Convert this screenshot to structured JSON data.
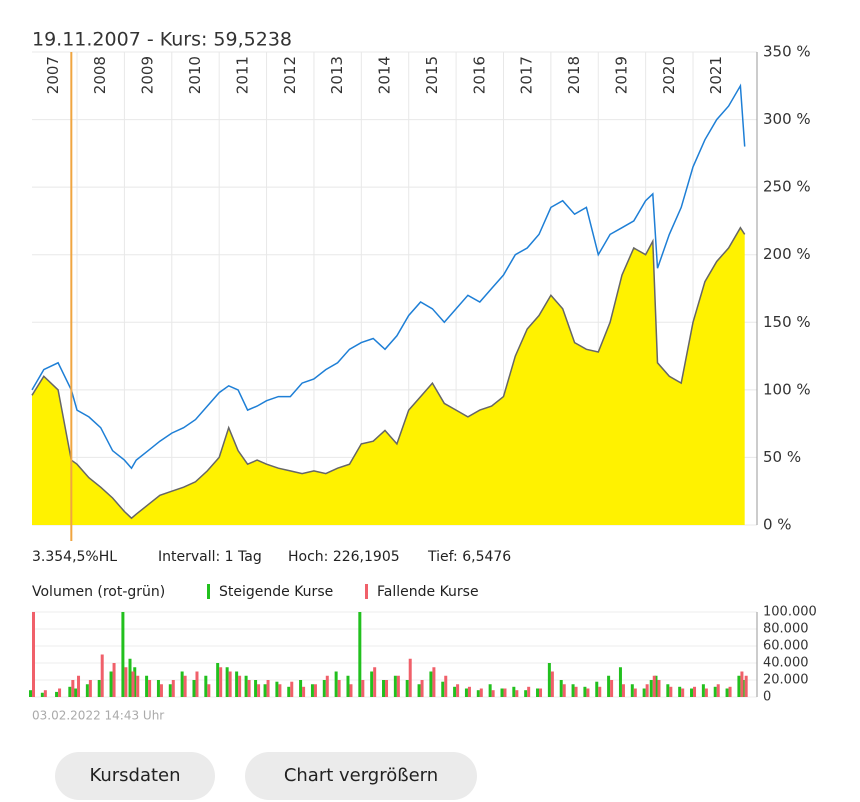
{
  "chart_data": [
    {
      "type": "line",
      "marker": {
        "x": 2007.88,
        "label": "19.11.2007  -  Kurs: 59,5238"
      },
      "annotations": [
        "3.354,5%HL",
        "Intervall: 1 Tag",
        "Hoch: 226,1905",
        "Tief: 6,5476"
      ],
      "x": [
        2007.05,
        2007.3,
        2007.6,
        2007.88,
        2008.0,
        2008.25,
        2008.5,
        2008.75,
        2009.0,
        2009.15,
        2009.25,
        2009.5,
        2009.75,
        2010.0,
        2010.25,
        2010.5,
        2010.75,
        2011.0,
        2011.2,
        2011.4,
        2011.6,
        2011.8,
        2012.0,
        2012.25,
        2012.5,
        2012.75,
        2013.0,
        2013.25,
        2013.5,
        2013.75,
        2014.0,
        2014.25,
        2014.5,
        2014.75,
        2015.0,
        2015.25,
        2015.5,
        2015.75,
        2016.0,
        2016.25,
        2016.5,
        2016.75,
        2017.0,
        2017.25,
        2017.5,
        2017.75,
        2018.0,
        2018.25,
        2018.5,
        2018.75,
        2019.0,
        2019.25,
        2019.5,
        2019.75,
        2020.0,
        2020.15,
        2020.25,
        2020.5,
        2020.75,
        2021.0,
        2021.25,
        2021.5,
        2021.75,
        2022.0,
        2022.09
      ],
      "series": [
        {
          "kind": "area",
          "color": "#fff200",
          "line_color": "#666666",
          "values": [
            96,
            110,
            100,
            48,
            45,
            35,
            28,
            20,
            10,
            5,
            8,
            15,
            22,
            25,
            28,
            32,
            40,
            50,
            72,
            55,
            45,
            48,
            45,
            42,
            40,
            38,
            40,
            38,
            42,
            45,
            60,
            62,
            70,
            60,
            85,
            95,
            105,
            90,
            85,
            80,
            85,
            88,
            95,
            125,
            145,
            155,
            170,
            160,
            135,
            130,
            128,
            150,
            185,
            205,
            200,
            210,
            120,
            110,
            105,
            150,
            180,
            195,
            205,
            220,
            215
          ]
        },
        {
          "kind": "line",
          "color": "#1e7fd6",
          "values": [
            100,
            115,
            120,
            100,
            85,
            80,
            72,
            55,
            48,
            42,
            48,
            55,
            62,
            68,
            72,
            78,
            88,
            98,
            103,
            100,
            85,
            88,
            92,
            95,
            95,
            105,
            108,
            115,
            120,
            130,
            135,
            138,
            130,
            140,
            155,
            165,
            160,
            150,
            160,
            170,
            165,
            175,
            185,
            200,
            205,
            215,
            235,
            240,
            230,
            235,
            200,
            215,
            220,
            225,
            240,
            245,
            190,
            215,
            235,
            265,
            285,
            300,
            310,
            325,
            280
          ]
        }
      ],
      "xlim": [
        2007.05,
        2022.35
      ],
      "xticks": [
        2007,
        2008,
        2009,
        2010,
        2011,
        2012,
        2013,
        2014,
        2015,
        2016,
        2017,
        2018,
        2019,
        2020,
        2021
      ],
      "ylim": [
        0,
        350
      ],
      "yticks": [
        {
          "value": 0,
          "label": "0 %"
        },
        {
          "value": 50,
          "label": "50 %"
        },
        {
          "value": 100,
          "label": "100 %"
        },
        {
          "value": 150,
          "label": "150 %"
        },
        {
          "value": 200,
          "label": "200 %"
        },
        {
          "value": 250,
          "label": "250 %"
        },
        {
          "value": 300,
          "label": "300 %"
        },
        {
          "value": 350,
          "label": "350 %"
        }
      ],
      "grid": true
    },
    {
      "type": "bar",
      "title": "Volumen (rot-grün)",
      "footnote": "03.02.2022 14:43 Uhr",
      "x": [
        2007.05,
        2007.3,
        2007.6,
        2007.88,
        2008.0,
        2008.25,
        2008.5,
        2008.75,
        2009.0,
        2009.15,
        2009.25,
        2009.5,
        2009.75,
        2010.0,
        2010.25,
        2010.5,
        2010.75,
        2011.0,
        2011.2,
        2011.4,
        2011.6,
        2011.8,
        2012.0,
        2012.25,
        2012.5,
        2012.75,
        2013.0,
        2013.25,
        2013.5,
        2013.75,
        2014.0,
        2014.25,
        2014.5,
        2014.75,
        2015.0,
        2015.25,
        2015.5,
        2015.75,
        2016.0,
        2016.25,
        2016.5,
        2016.75,
        2017.0,
        2017.25,
        2017.5,
        2017.75,
        2018.0,
        2018.25,
        2018.5,
        2018.75,
        2019.0,
        2019.25,
        2019.5,
        2019.75,
        2020.0,
        2020.15,
        2020.25,
        2020.5,
        2020.75,
        2021.0,
        2021.25,
        2021.5,
        2021.75,
        2022.0,
        2022.09
      ],
      "series": [
        {
          "name": "Steigende Kurse",
          "color": "#22c01e",
          "values": [
            8000,
            5000,
            6000,
            12000,
            10000,
            15000,
            20000,
            30000,
            100000,
            45000,
            35000,
            25000,
            20000,
            15000,
            30000,
            20000,
            25000,
            40000,
            35000,
            30000,
            25000,
            20000,
            15000,
            18000,
            12000,
            20000,
            15000,
            20000,
            30000,
            25000,
            100000,
            30000,
            20000,
            25000,
            20000,
            15000,
            30000,
            18000,
            12000,
            10000,
            8000,
            15000,
            10000,
            12000,
            8000,
            10000,
            40000,
            20000,
            15000,
            12000,
            18000,
            25000,
            35000,
            15000,
            10000,
            20000,
            25000,
            15000,
            12000,
            10000,
            15000,
            12000,
            10000,
            25000,
            20000
          ]
        },
        {
          "name": "Fallende Kurse",
          "color": "#f0606a",
          "values": [
            100000,
            8000,
            10000,
            20000,
            25000,
            20000,
            50000,
            40000,
            35000,
            30000,
            25000,
            20000,
            15000,
            20000,
            25000,
            30000,
            15000,
            35000,
            30000,
            25000,
            20000,
            15000,
            20000,
            15000,
            18000,
            12000,
            15000,
            25000,
            20000,
            15000,
            20000,
            35000,
            20000,
            25000,
            45000,
            20000,
            35000,
            25000,
            15000,
            12000,
            10000,
            8000,
            10000,
            8000,
            12000,
            10000,
            30000,
            15000,
            12000,
            10000,
            12000,
            20000,
            15000,
            10000,
            15000,
            25000,
            20000,
            12000,
            10000,
            12000,
            10000,
            15000,
            12000,
            30000,
            25000
          ]
        }
      ],
      "xlim": [
        2007.05,
        2022.35
      ],
      "ylim": [
        0,
        100000
      ],
      "yticks": [
        0,
        {
          "value": 20000,
          "label": "20.000"
        },
        {
          "value": 40000,
          "label": "40.000"
        },
        {
          "value": 60000,
          "label": "60.000"
        },
        {
          "value": 80000,
          "label": "80.000"
        },
        {
          "value": 100000,
          "label": "100.000"
        }
      ]
    }
  ],
  "buttons": [
    "Kursdaten",
    "Chart vergrößern"
  ]
}
